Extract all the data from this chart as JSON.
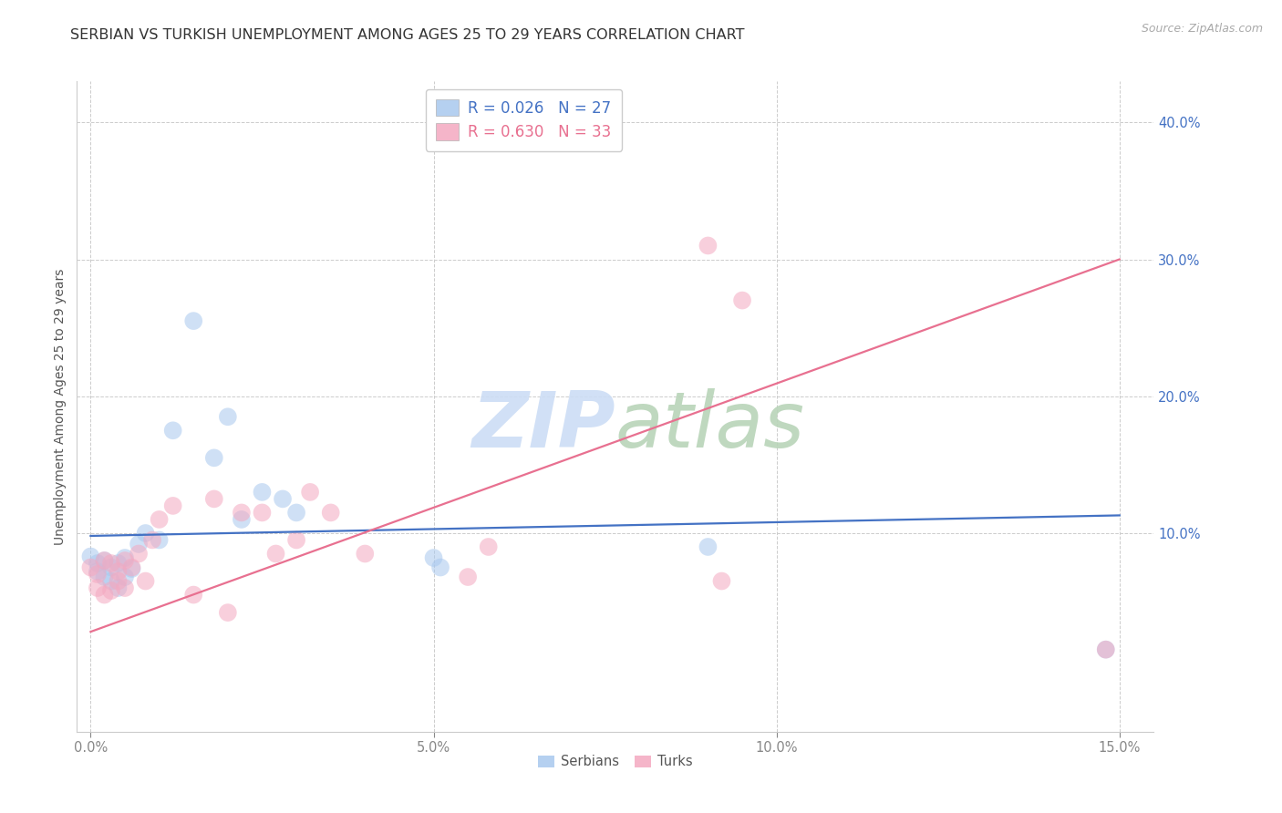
{
  "title": "SERBIAN VS TURKISH UNEMPLOYMENT AMONG AGES 25 TO 29 YEARS CORRELATION CHART",
  "source": "Source: ZipAtlas.com",
  "ylabel": "Unemployment Among Ages 25 to 29 years",
  "xlabel_ticks": [
    "0.0%",
    "5.0%",
    "10.0%",
    "15.0%"
  ],
  "xlabel_vals": [
    0.0,
    0.05,
    0.1,
    0.15
  ],
  "ylabel_ticks": [
    "10.0%",
    "20.0%",
    "30.0%",
    "40.0%"
  ],
  "ylabel_vals": [
    0.1,
    0.2,
    0.3,
    0.4
  ],
  "xlim": [
    -0.002,
    0.155
  ],
  "ylim": [
    -0.045,
    0.43
  ],
  "serbian_color": "#a8c8ee",
  "turkish_color": "#f4a8c0",
  "serbian_line_color": "#4472c4",
  "turkish_line_color": "#e87090",
  "watermark_zip_color": "#ccddf5",
  "watermark_atlas_color": "#b8d4b8",
  "background_color": "#ffffff",
  "grid_color": "#cccccc",
  "title_fontsize": 11.5,
  "axis_label_fontsize": 10,
  "tick_fontsize": 10.5,
  "source_fontsize": 9,
  "marker_size": 200,
  "marker_alpha": 0.55,
  "line_width": 1.6,
  "serbians_x": [
    0.0,
    0.001,
    0.001,
    0.002,
    0.002,
    0.003,
    0.003,
    0.004,
    0.004,
    0.005,
    0.005,
    0.006,
    0.007,
    0.008,
    0.01,
    0.012,
    0.015,
    0.018,
    0.02,
    0.022,
    0.025,
    0.028,
    0.03,
    0.05,
    0.051,
    0.09,
    0.148
  ],
  "serbians_y": [
    0.083,
    0.078,
    0.072,
    0.08,
    0.068,
    0.075,
    0.065,
    0.078,
    0.06,
    0.082,
    0.068,
    0.074,
    0.092,
    0.1,
    0.095,
    0.175,
    0.255,
    0.155,
    0.185,
    0.11,
    0.13,
    0.125,
    0.115,
    0.082,
    0.075,
    0.09,
    0.015
  ],
  "turks_x": [
    0.0,
    0.001,
    0.001,
    0.002,
    0.002,
    0.003,
    0.003,
    0.004,
    0.004,
    0.005,
    0.005,
    0.006,
    0.007,
    0.008,
    0.009,
    0.01,
    0.012,
    0.015,
    0.018,
    0.02,
    0.022,
    0.025,
    0.027,
    0.03,
    0.032,
    0.035,
    0.04,
    0.055,
    0.058,
    0.09,
    0.092,
    0.095,
    0.148
  ],
  "turks_y": [
    0.075,
    0.07,
    0.06,
    0.08,
    0.055,
    0.078,
    0.058,
    0.072,
    0.065,
    0.08,
    0.06,
    0.075,
    0.085,
    0.065,
    0.095,
    0.11,
    0.12,
    0.055,
    0.125,
    0.042,
    0.115,
    0.115,
    0.085,
    0.095,
    0.13,
    0.115,
    0.085,
    0.068,
    0.09,
    0.31,
    0.065,
    0.27,
    0.015
  ],
  "serbian_line_x0": 0.0,
  "serbian_line_y0": 0.098,
  "serbian_line_x1": 0.15,
  "serbian_line_y1": 0.113,
  "turkish_line_x0": 0.0,
  "turkish_line_y0": 0.028,
  "turkish_line_x1": 0.15,
  "turkish_line_y1": 0.3
}
